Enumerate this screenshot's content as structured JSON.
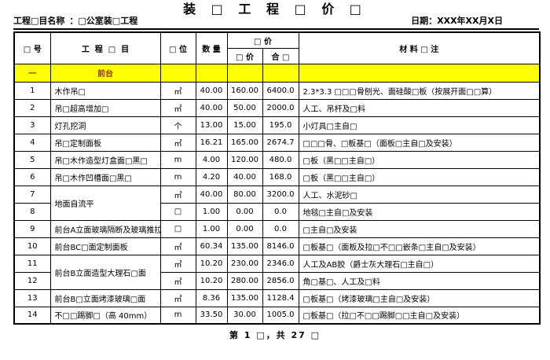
{
  "title": "装 □ 工 程 □ 价 □",
  "meta": {
    "project_label": "工程□目名称",
    "project_value": "：□公室装□工程",
    "date_label": "日期：",
    "date_value": "XXX年XX月X日"
  },
  "columns": {
    "seq": "□ 号",
    "project": "工  程  □  目",
    "unit": "□ 位",
    "qty": "数 量",
    "price_group": "□ 价",
    "unit_price": "□ 价",
    "total": "合 □",
    "materials": "材 料 □ 注"
  },
  "section": {
    "seq": "一",
    "name": "前台"
  },
  "rows": [
    {
      "seq": "1",
      "project": "木作吊□",
      "unit": "㎡",
      "qty": "40.00",
      "price": "160.00",
      "total": "6400.0",
      "materials": "2.3*3.3 □□□骨刨光、面硅酸□板（按展开面□□算）"
    },
    {
      "seq": "2",
      "project": "吊□超高增加□",
      "unit": "㎡",
      "qty": "40.00",
      "price": "50.00",
      "total": "2000.0",
      "materials": "人工、吊杆及□料"
    },
    {
      "seq": "3",
      "project": "灯孔挖洞",
      "unit": "个",
      "qty": "13.00",
      "price": "15.00",
      "total": "195.0",
      "materials": "小灯具□主自□"
    },
    {
      "seq": "4",
      "project": "吊□定制面板",
      "unit": "㎡",
      "qty": "16.21",
      "price": "165.00",
      "total": "2674.7",
      "materials": "□□□骨、□板基□（面板□主自□及安装）"
    },
    {
      "seq": "5",
      "project": "吊□木作造型灯盒面□黑□",
      "unit": "m",
      "qty": "4.00",
      "price": "120.00",
      "total": "480.0",
      "materials": "□板（黑□□主自□）"
    },
    {
      "seq": "6",
      "project": "吊□木作凹槽面□黑□",
      "unit": "m",
      "qty": "4.20",
      "price": "40.00",
      "total": "168.0",
      "materials": "□板（黑□□主自□）"
    },
    {
      "seq": "7",
      "project": "地面自流平",
      "project_rowspan": 2,
      "unit": "㎡",
      "qty": "40.00",
      "price": "80.00",
      "total": "3200.0",
      "materials": "人工、水泥砂□"
    },
    {
      "seq": "8",
      "project": null,
      "unit": "□",
      "qty": "1.00",
      "price": "0.00",
      "total": "0.0",
      "materials": "地毯□主自□及安装"
    },
    {
      "seq": "9",
      "project": "前台A立面玻璃隔断及玻璃推拉□",
      "unit": "□",
      "qty": "1.00",
      "price": "0.00",
      "total": "0.0",
      "materials": "□主自□及安装"
    },
    {
      "seq": "10",
      "project": "前台BC□面定制面板",
      "unit": "㎡",
      "qty": "60.34",
      "price": "135.00",
      "total": "8146.0",
      "materials": "□板基□（面板及拉□不□□嵌条□主自□及安装）"
    },
    {
      "seq": "11",
      "project": "前台B立面造型大理石□面",
      "project_rowspan": 2,
      "unit": "㎡",
      "qty": "10.20",
      "price": "230.00",
      "total": "2346.0",
      "materials": "人工及AB胶（爵士灰大理石□主自□）"
    },
    {
      "seq": "12",
      "project": null,
      "unit": "㎡",
      "qty": "10.20",
      "price": "280.00",
      "total": "2856.0",
      "materials": "角□基□、人工及□料"
    },
    {
      "seq": "13",
      "project": "前台B□立面烤漆玻璃□面",
      "unit": "㎡",
      "qty": "8.36",
      "price": "135.00",
      "total": "1128.4",
      "materials": "□板基□（烤漆玻璃□主自□及安装）"
    },
    {
      "seq": "14",
      "project": "不□□踢脚□（高 40mm）",
      "unit": "m",
      "qty": "33.50",
      "price": "30.00",
      "total": "1005.0",
      "materials": "□板基□（拉□不□□踢脚□□主自□及安装）"
    }
  ],
  "footer": {
    "page_text": "第 1 □，共 27 □"
  },
  "colors": {
    "section_bg": "#FFFF00",
    "section_text": "#993300",
    "border": "#000000"
  }
}
